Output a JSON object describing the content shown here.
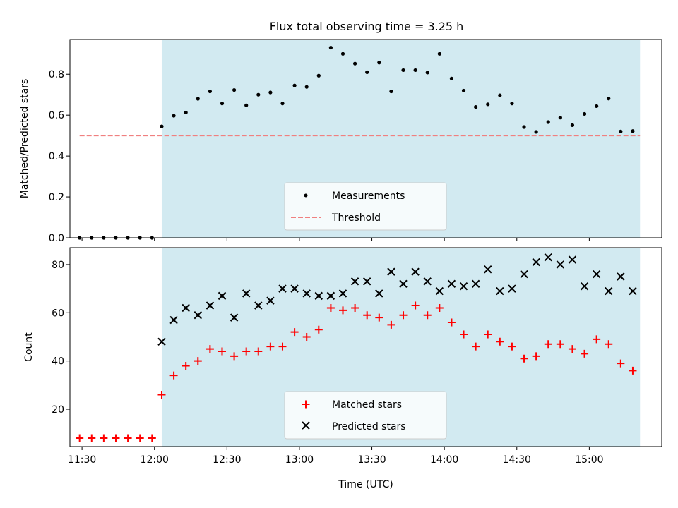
{
  "chart_data": [
    {
      "type": "scatter",
      "title": "Flux total observing time = 3.25 h",
      "xlabel": "",
      "ylabel": "Matched/Predicted stars",
      "xlim": [
        "11:25",
        "15:30"
      ],
      "ylim": [
        0,
        0.97
      ],
      "yticks": [
        0.0,
        0.2,
        0.4,
        0.6,
        0.8
      ],
      "ytick_labels": [
        "0.0",
        "0.2",
        "0.4",
        "0.6",
        "0.8"
      ],
      "grid": false,
      "legend_position": "lower-center",
      "shaded_interval": [
        "12:03",
        "15:21"
      ],
      "shade_color": "#add8e6",
      "series": [
        {
          "name": "Measurements",
          "marker": "dot",
          "color": "#000000",
          "x": [
            "11:29",
            "11:34",
            "11:39",
            "11:44",
            "11:49",
            "11:54",
            "11:59",
            "12:03",
            "12:08",
            "12:13",
            "12:18",
            "12:23",
            "12:28",
            "12:33",
            "12:38",
            "12:43",
            "12:48",
            "12:53",
            "12:58",
            "13:03",
            "13:08",
            "13:13",
            "13:18",
            "13:23",
            "13:28",
            "13:33",
            "13:38",
            "13:43",
            "13:48",
            "13:53",
            "13:58",
            "14:03",
            "14:08",
            "14:13",
            "14:18",
            "14:23",
            "14:28",
            "14:33",
            "14:38",
            "14:43",
            "14:48",
            "14:53",
            "14:58",
            "15:03",
            "15:08",
            "15:13",
            "15:18"
          ],
          "y": [
            0.0,
            0.0,
            0.0,
            0.0,
            0.0,
            0.0,
            0.0,
            0.545,
            0.597,
            0.613,
            0.68,
            0.716,
            0.657,
            0.723,
            0.648,
            0.7,
            0.711,
            0.657,
            0.745,
            0.738,
            0.793,
            0.93,
            0.9,
            0.852,
            0.81,
            0.857,
            0.716,
            0.82,
            0.82,
            0.808,
            0.9,
            0.779,
            0.72,
            0.64,
            0.653,
            0.697,
            0.657,
            0.542,
            0.518,
            0.566,
            0.588,
            0.551,
            0.606,
            0.644,
            0.681,
            0.52,
            0.522
          ]
        },
        {
          "name": "Threshold",
          "type": "line",
          "style": "dashed",
          "color": "#f08080",
          "x": [
            "11:29",
            "15:21"
          ],
          "y": [
            0.5,
            0.5
          ]
        }
      ]
    },
    {
      "type": "scatter",
      "title": "",
      "xlabel": "Time (UTC)",
      "ylabel": "Count",
      "xlim": [
        "11:25",
        "15:30"
      ],
      "ylim": [
        4.5,
        87
      ],
      "xticks": [
        "11:30",
        "12:00",
        "12:30",
        "13:00",
        "13:30",
        "14:00",
        "14:30",
        "15:00"
      ],
      "yticks": [
        20,
        40,
        60,
        80
      ],
      "ytick_labels": [
        "20",
        "40",
        "60",
        "80"
      ],
      "grid": false,
      "legend_position": "lower-center",
      "shaded_interval": [
        "12:03",
        "15:21"
      ],
      "shade_color": "#add8e6",
      "series": [
        {
          "name": "Matched stars",
          "marker": "plus",
          "color": "#ff0000",
          "x": [
            "11:29",
            "11:34",
            "11:39",
            "11:44",
            "11:49",
            "11:54",
            "11:59",
            "12:03",
            "12:08",
            "12:13",
            "12:18",
            "12:23",
            "12:28",
            "12:33",
            "12:38",
            "12:43",
            "12:48",
            "12:53",
            "12:58",
            "13:03",
            "13:08",
            "13:13",
            "13:18",
            "13:23",
            "13:28",
            "13:33",
            "13:38",
            "13:43",
            "13:48",
            "13:53",
            "13:58",
            "14:03",
            "14:08",
            "14:13",
            "14:18",
            "14:23",
            "14:28",
            "14:33",
            "14:38",
            "14:43",
            "14:48",
            "14:53",
            "14:58",
            "15:03",
            "15:08",
            "15:13",
            "15:18"
          ],
          "y": [
            8,
            8,
            8,
            8,
            8,
            8,
            8,
            26,
            34,
            38,
            40,
            45,
            44,
            42,
            44,
            44,
            46,
            46,
            52,
            50,
            53,
            62,
            61,
            62,
            59,
            58,
            55,
            59,
            63,
            59,
            62,
            56,
            51,
            46,
            51,
            48,
            46,
            41,
            42,
            47,
            47,
            45,
            43,
            49,
            47,
            39,
            36
          ]
        },
        {
          "name": "Predicted stars",
          "marker": "x",
          "color": "#000000",
          "x": [
            "12:03",
            "12:08",
            "12:13",
            "12:18",
            "12:23",
            "12:28",
            "12:33",
            "12:38",
            "12:43",
            "12:48",
            "12:53",
            "12:58",
            "13:03",
            "13:08",
            "13:13",
            "13:18",
            "13:23",
            "13:28",
            "13:33",
            "13:38",
            "13:43",
            "13:48",
            "13:53",
            "13:58",
            "14:03",
            "14:08",
            "14:13",
            "14:18",
            "14:23",
            "14:28",
            "14:33",
            "14:38",
            "14:43",
            "14:48",
            "14:53",
            "14:58",
            "15:03",
            "15:08",
            "15:13",
            "15:18"
          ],
          "y": [
            48,
            57,
            62,
            59,
            63,
            67,
            58,
            68,
            63,
            65,
            70,
            70,
            68,
            67,
            67,
            68,
            73,
            73,
            68,
            77,
            72,
            77,
            73,
            69,
            72,
            71,
            72,
            78,
            69,
            70,
            76,
            81,
            83,
            80,
            82,
            71,
            76,
            69,
            75,
            69
          ]
        }
      ]
    }
  ]
}
